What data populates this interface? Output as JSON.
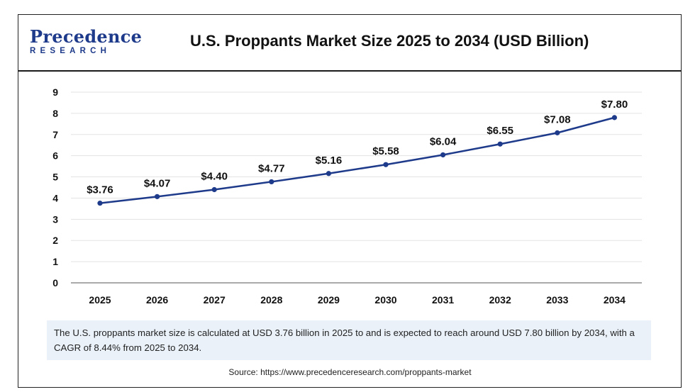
{
  "logo": {
    "line1": "Precedence",
    "line2": "RESEARCH"
  },
  "header": {
    "title": "U.S. Proppants Market Size 2025 to 2034 (USD Billion)"
  },
  "note": "The U.S. proppants market size is calculated at USD 3.76 billion in 2025 to and is expected to reach around USD 7.80 billion by 2034, with a CAGR of 8.44% from 2025 to 2034.",
  "source": "Source: https://www.precedenceresearch.com/proppants-market",
  "colors": {
    "line": "#1e3a8a",
    "grid": "#e3e3e3",
    "axis": "#555555",
    "note_bg": "#eaf1f9"
  },
  "chart_data": {
    "type": "line",
    "title": "U.S. Proppants Market Size 2025 to 2034 (USD Billion)",
    "xlabel": "",
    "ylabel": "",
    "categories": [
      "2025",
      "2026",
      "2027",
      "2028",
      "2029",
      "2030",
      "2031",
      "2032",
      "2033",
      "2034"
    ],
    "values": [
      3.76,
      4.07,
      4.4,
      4.77,
      5.16,
      5.58,
      6.04,
      6.55,
      7.08,
      7.8
    ],
    "labels": [
      "$3.76",
      "$4.07",
      "$4.40",
      "$4.77",
      "$5.16",
      "$5.58",
      "$6.04",
      "$6.55",
      "$7.08",
      "$7.80"
    ],
    "yticks": [
      "0",
      "1",
      "2",
      "3",
      "4",
      "5",
      "6",
      "7",
      "8",
      "9"
    ],
    "ylim": [
      0,
      9
    ],
    "grid": true,
    "legend": "none"
  }
}
